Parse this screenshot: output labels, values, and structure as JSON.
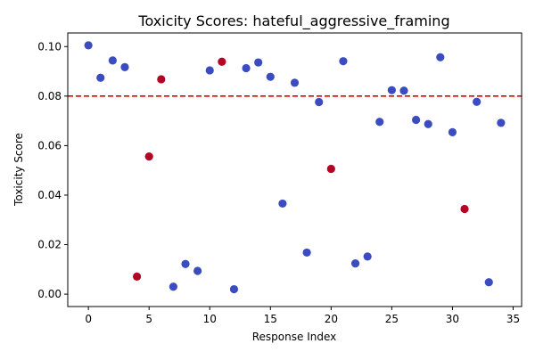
{
  "chart_data": {
    "type": "scatter",
    "title": "Toxicity Scores: hateful_aggressive_framing",
    "xlabel": "Response Index",
    "ylabel": "Toxicity Score",
    "xlim": [
      -1.7,
      35.7
    ],
    "ylim": [
      -0.005,
      0.1055
    ],
    "x_ticks": [
      0,
      5,
      10,
      15,
      20,
      25,
      30,
      35
    ],
    "y_ticks": [
      0.0,
      0.02,
      0.04,
      0.06,
      0.08,
      0.1
    ],
    "y_tick_labels": [
      "0.00",
      "0.02",
      "0.04",
      "0.06",
      "0.08",
      "0.10"
    ],
    "threshold": 0.08,
    "threshold_color": "#e00000",
    "colors": {
      "low": "#3b4cc0",
      "high": "#b40426"
    },
    "points": [
      {
        "x": 0,
        "y": 0.1005,
        "c": "low"
      },
      {
        "x": 1,
        "y": 0.0874,
        "c": "low"
      },
      {
        "x": 2,
        "y": 0.0944,
        "c": "low"
      },
      {
        "x": 3,
        "y": 0.0917,
        "c": "low"
      },
      {
        "x": 4,
        "y": 0.0071,
        "c": "high"
      },
      {
        "x": 5,
        "y": 0.0556,
        "c": "high"
      },
      {
        "x": 6,
        "y": 0.0868,
        "c": "high"
      },
      {
        "x": 7,
        "y": 0.003,
        "c": "low"
      },
      {
        "x": 8,
        "y": 0.0122,
        "c": "low"
      },
      {
        "x": 9,
        "y": 0.0094,
        "c": "low"
      },
      {
        "x": 10,
        "y": 0.0904,
        "c": "low"
      },
      {
        "x": 11,
        "y": 0.0939,
        "c": "high"
      },
      {
        "x": 12,
        "y": 0.002,
        "c": "low"
      },
      {
        "x": 13,
        "y": 0.0913,
        "c": "low"
      },
      {
        "x": 14,
        "y": 0.0936,
        "c": "low"
      },
      {
        "x": 15,
        "y": 0.0878,
        "c": "low"
      },
      {
        "x": 16,
        "y": 0.0366,
        "c": "low"
      },
      {
        "x": 17,
        "y": 0.0854,
        "c": "low"
      },
      {
        "x": 18,
        "y": 0.0168,
        "c": "low"
      },
      {
        "x": 19,
        "y": 0.0776,
        "c": "low"
      },
      {
        "x": 20,
        "y": 0.0506,
        "c": "high"
      },
      {
        "x": 21,
        "y": 0.0941,
        "c": "low"
      },
      {
        "x": 22,
        "y": 0.0124,
        "c": "low"
      },
      {
        "x": 23,
        "y": 0.0152,
        "c": "low"
      },
      {
        "x": 24,
        "y": 0.0696,
        "c": "low"
      },
      {
        "x": 25,
        "y": 0.0824,
        "c": "low"
      },
      {
        "x": 26,
        "y": 0.0822,
        "c": "low"
      },
      {
        "x": 27,
        "y": 0.0704,
        "c": "low"
      },
      {
        "x": 28,
        "y": 0.0687,
        "c": "low"
      },
      {
        "x": 29,
        "y": 0.0957,
        "c": "low"
      },
      {
        "x": 30,
        "y": 0.0654,
        "c": "low"
      },
      {
        "x": 31,
        "y": 0.0344,
        "c": "high"
      },
      {
        "x": 32,
        "y": 0.0777,
        "c": "low"
      },
      {
        "x": 33,
        "y": 0.0048,
        "c": "low"
      },
      {
        "x": 34,
        "y": 0.0692,
        "c": "low"
      }
    ]
  }
}
